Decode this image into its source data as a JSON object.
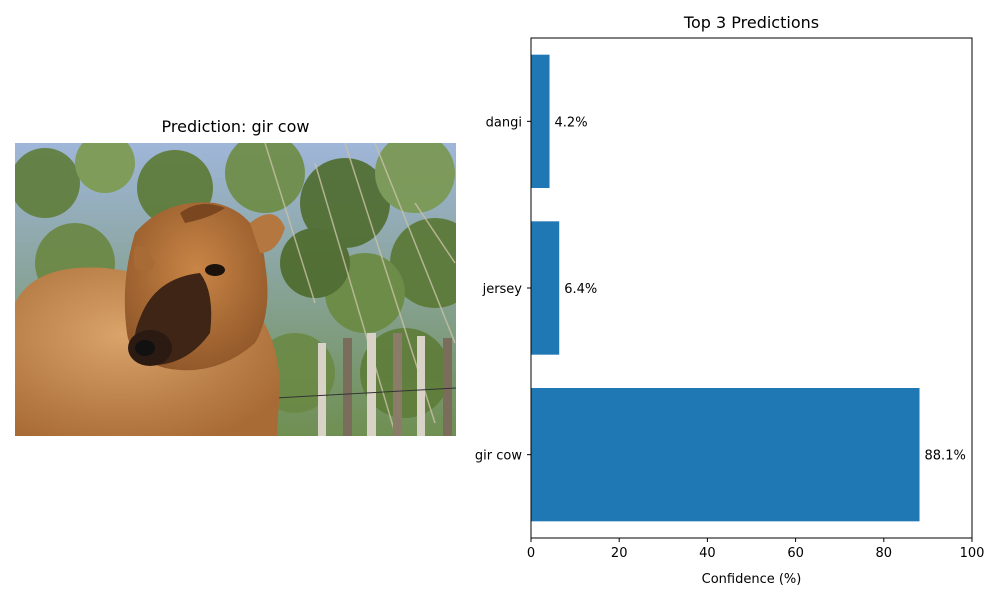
{
  "image_panel": {
    "title": "Prediction: gir cow",
    "subject_icon": "cow-photo"
  },
  "chart_data": {
    "type": "bar",
    "orientation": "horizontal",
    "title": "Top 3 Predictions",
    "categories": [
      "gir cow",
      "jersey",
      "dangi"
    ],
    "values": [
      88.1,
      6.4,
      4.2
    ],
    "value_labels": [
      "88.1%",
      "6.4%",
      "4.2%"
    ],
    "xlabel": "Confidence (%)",
    "ylabel": "",
    "xlim": [
      0,
      100
    ],
    "xticks": [
      "0",
      "20",
      "40",
      "60",
      "80",
      "100"
    ],
    "grid": false,
    "bar_color": "#1f77b4"
  }
}
